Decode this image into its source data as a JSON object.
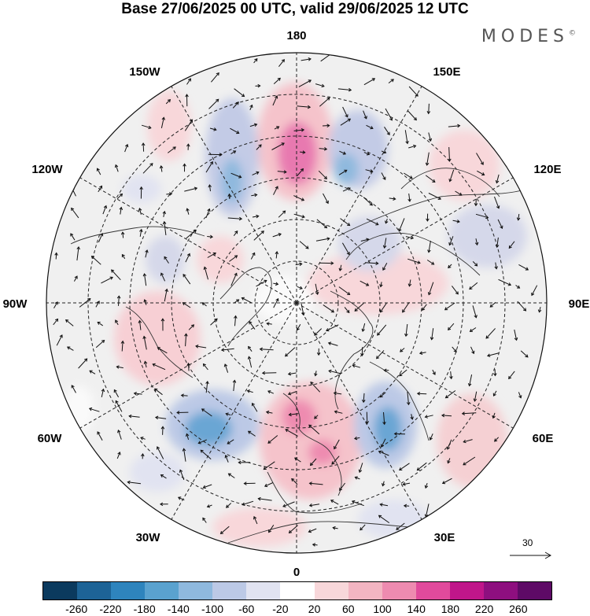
{
  "title": "Base 27/06/2025 00 UTC, valid 29/06/2025 12 UTC",
  "brand": "MODES",
  "brand_mark": "©",
  "longitude_labels": {
    "lon_180": "180",
    "lon_150e": "150E",
    "lon_120e": "120E",
    "lon_90e": "90E",
    "lon_60e": "60E",
    "lon_30e": "30E",
    "lon_0": "0",
    "lon_30w": "30W",
    "lon_60w": "60W",
    "lon_90w": "90W",
    "lon_120w": "120W",
    "lon_150w": "150W"
  },
  "reference_vector": {
    "value": "30",
    "icon": "arrow-right-icon"
  },
  "colorbar": {
    "colors": [
      "#0b3a5e",
      "#1d6396",
      "#2e84bd",
      "#5aa2cf",
      "#8fb9de",
      "#bcc9e6",
      "#e1e3f1",
      "#ffffff",
      "#f8d7da",
      "#f3b5c2",
      "#ee8bb0",
      "#e14a9c",
      "#c0168a",
      "#8e0f7f",
      "#5e0a66"
    ],
    "labels": [
      "-260",
      "-220",
      "-180",
      "-140",
      "-100",
      "-60",
      "-20",
      "20",
      "60",
      "100",
      "140",
      "180",
      "220",
      "260"
    ]
  }
}
